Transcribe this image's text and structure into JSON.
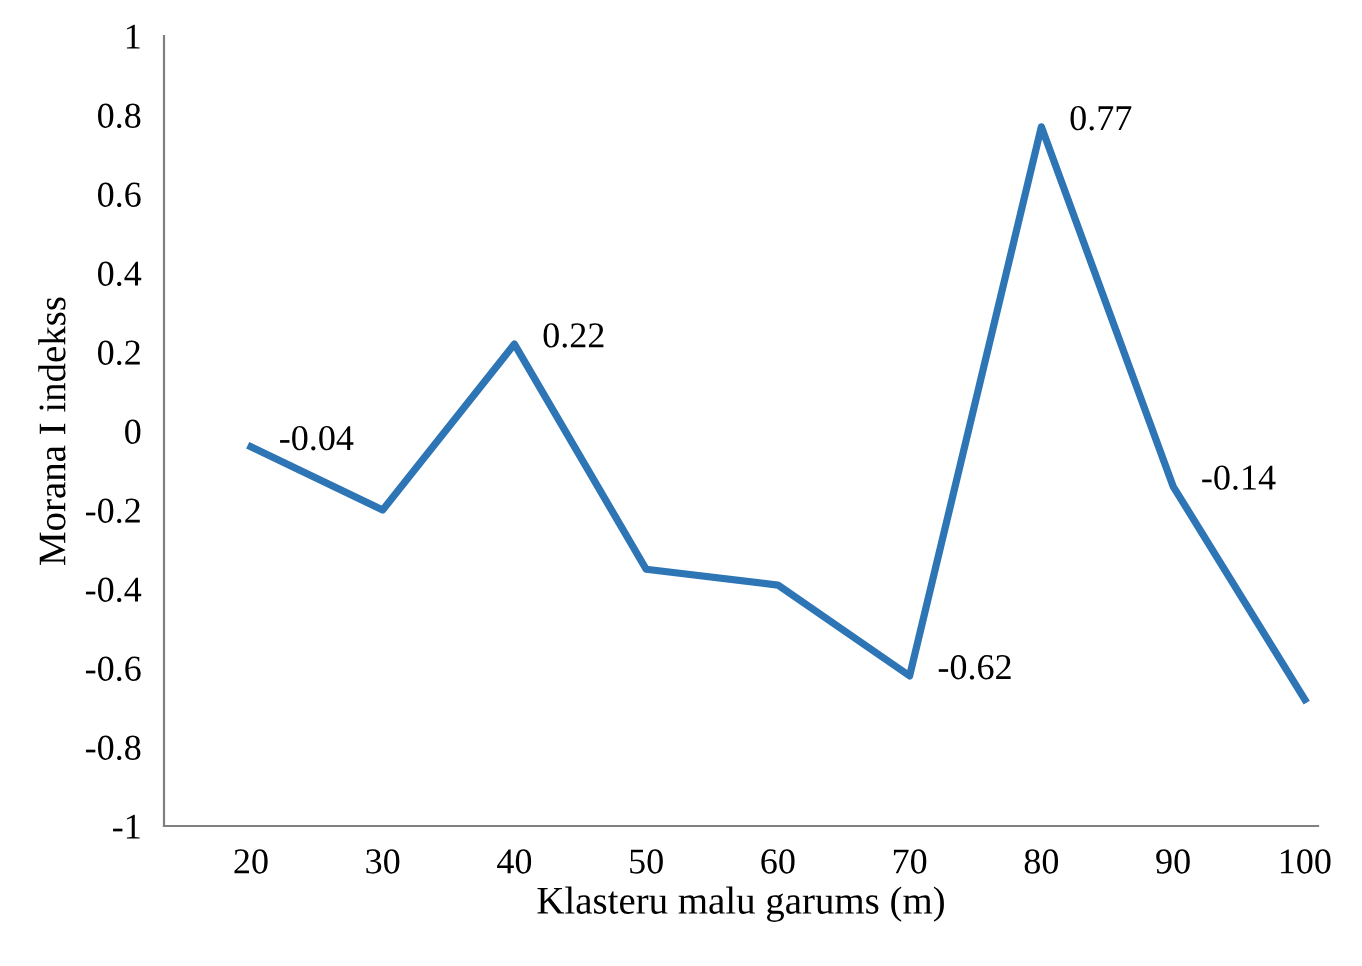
{
  "chart_data": {
    "type": "line",
    "xlabel": "Klasteru malu garums (m)",
    "ylabel": "Morana I indekss",
    "categories": [
      "20",
      "30",
      "40",
      "50",
      "60",
      "70",
      "80",
      "90",
      "100"
    ],
    "series": [
      {
        "color": "#2e75b6",
        "values": [
          -0.04,
          -0.2,
          0.22,
          -0.35,
          -0.39,
          -0.62,
          0.77,
          -0.14,
          -0.68
        ],
        "value_labels": [
          "-0.04",
          null,
          "0.22",
          null,
          null,
          "-0.62",
          "0.77",
          "-0.14",
          null
        ]
      }
    ],
    "ylim": [
      -1,
      1
    ],
    "yticks": [
      -1,
      -0.8,
      -0.6,
      -0.4,
      -0.2,
      0,
      0.2,
      0.4,
      0.6,
      0.8,
      1
    ],
    "grid": false,
    "legend": false,
    "marker": "none",
    "line_style": "solid"
  }
}
